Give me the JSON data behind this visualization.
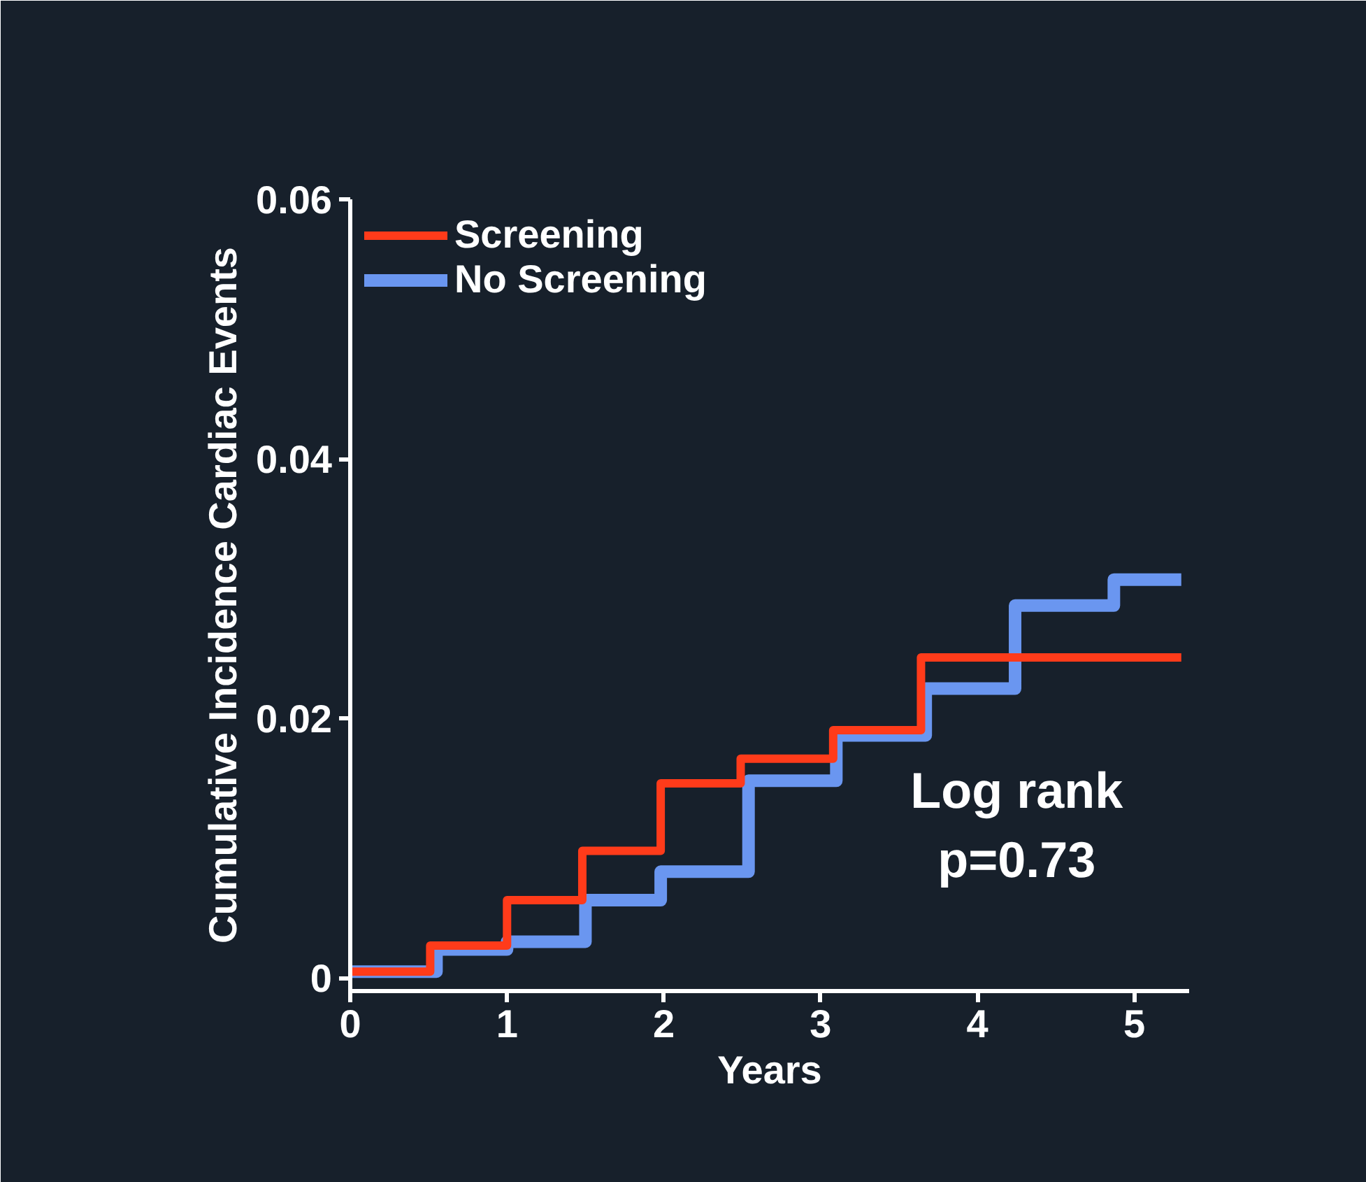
{
  "chart_data": {
    "type": "step",
    "xlabel": "Years",
    "ylabel": "Cumulative Incidence Cardiac Events",
    "xlim": [
      0,
      5.35
    ],
    "ylim": [
      -0.001,
      0.06
    ],
    "xticks": [
      0,
      1,
      2,
      3,
      4,
      5
    ],
    "yticks": [
      0,
      0.02,
      0.04,
      0.06
    ],
    "grid": false,
    "legend": "top left",
    "line_style": "solid",
    "marker": "none",
    "series": [
      {
        "name": "Screening",
        "color": "#ff3b1a",
        "x": [
          0,
          0.51,
          1.0,
          1.48,
          1.98,
          2.49,
          3.08,
          3.64,
          5.3
        ],
        "values": [
          0.0005,
          0.0025,
          0.006,
          0.0098,
          0.015,
          0.0169,
          0.0191,
          0.0247,
          0.0247
        ]
      },
      {
        "name": "No Screening",
        "color": "#6a96f0",
        "x": [
          0,
          0.55,
          1.0,
          1.5,
          1.98,
          2.54,
          3.1,
          3.67,
          4.24,
          4.87,
          5.3
        ],
        "values": [
          0.0005,
          0.0022,
          0.0028,
          0.006,
          0.0082,
          0.0152,
          0.0187,
          0.0223,
          0.0287,
          0.0307,
          0.0307
        ]
      }
    ],
    "annotations": [
      "Log rank\np=0.73"
    ]
  }
}
